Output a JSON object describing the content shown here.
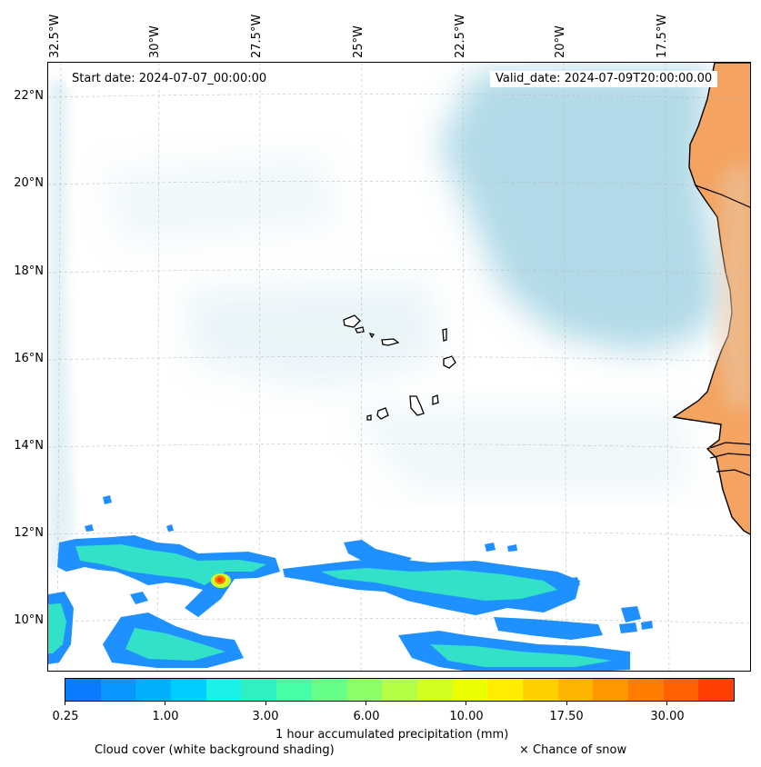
{
  "map": {
    "start_date": "Start date: 2024-07-07_00:00:00",
    "valid_date": "Valid_date: 2024-07-09T20:00:00.00",
    "lon_labels": [
      "32.5°W",
      "30°W",
      "27.5°W",
      "25°W",
      "22.5°W",
      "20°W",
      "17.5°W"
    ],
    "lat_labels": [
      "22°N",
      "20°N",
      "18°N",
      "16°N",
      "14°N",
      "12°N",
      "10°N"
    ]
  },
  "colorbar": {
    "colors": [
      "#0a7cff",
      "#0a96ff",
      "#00b0ff",
      "#00ccff",
      "#19f0e6",
      "#2ef0c0",
      "#44ffa8",
      "#66ff88",
      "#8cff66",
      "#b2ff44",
      "#d0ff20",
      "#eaff00",
      "#ffee00",
      "#ffd000",
      "#ffb400",
      "#ff9800",
      "#ff7c00",
      "#ff6000",
      "#ff4000"
    ],
    "tick_labels": [
      "0.25",
      "1.00",
      "3.00",
      "6.00",
      "10.00",
      "17.50",
      "30.00"
    ],
    "label": "1 hour accumulated precipitation (mm)"
  },
  "legend": {
    "cloud_cover": "Cloud cover (white background shading)",
    "snow": "× Chance of snow"
  },
  "colors": {
    "land": "#f4a460",
    "cloud": "#add8e6",
    "precip_low": "#1e90ff",
    "precip_mid": "#33e0c8",
    "coast": "#000000"
  }
}
